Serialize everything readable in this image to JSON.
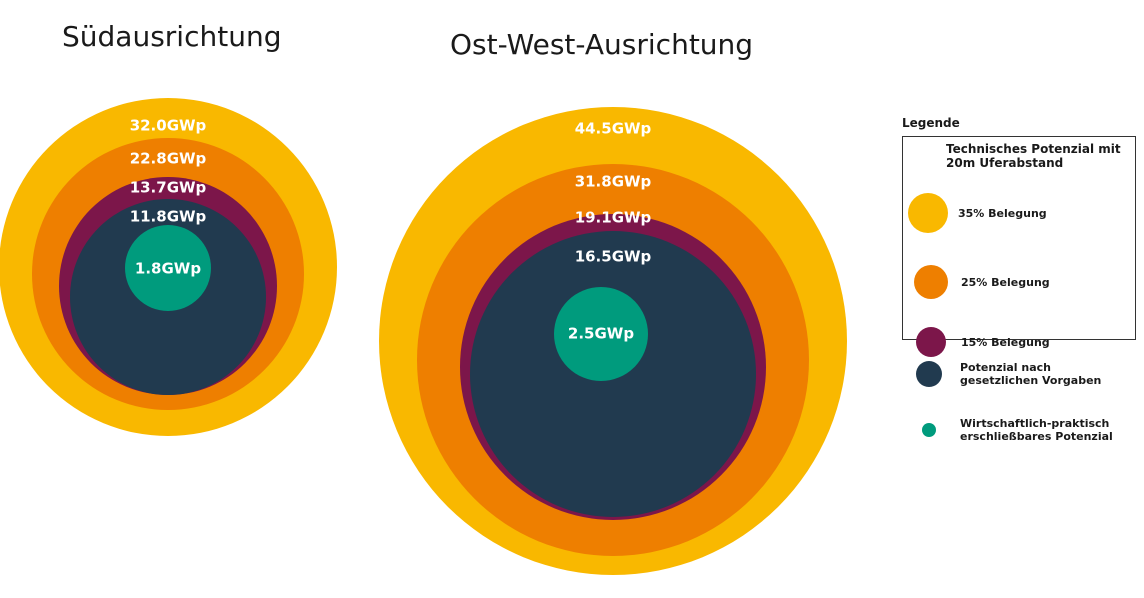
{
  "colors": {
    "occ35": "#f9b800",
    "occ25": "#ee7f00",
    "occ15": "#7c164a",
    "legal": "#213a4f",
    "economic": "#009b7d"
  },
  "chart_data": [
    {
      "type": "nested-circles",
      "title": "Südausrichtung",
      "rings": [
        {
          "key": "occ35",
          "value": 32.0,
          "label": "32.0GWp"
        },
        {
          "key": "occ25",
          "value": 22.8,
          "label": "22.8GWp"
        },
        {
          "key": "occ15",
          "value": 13.7,
          "label": "13.7GWp"
        },
        {
          "key": "legal",
          "value": 11.8,
          "label": "11.8GWp"
        },
        {
          "key": "economic",
          "value": 1.8,
          "label": "1.8GWp"
        }
      ]
    },
    {
      "type": "nested-circles",
      "title": "Ost-West-Ausrichtung",
      "rings": [
        {
          "key": "occ35",
          "value": 44.5,
          "label": "44.5GWp"
        },
        {
          "key": "occ25",
          "value": 31.8,
          "label": "31.8GWp"
        },
        {
          "key": "occ15",
          "value": 19.1,
          "label": "19.1GWp"
        },
        {
          "key": "legal",
          "value": 16.5,
          "label": "16.5GWp"
        },
        {
          "key": "economic",
          "value": 2.5,
          "label": "2.5GWp"
        }
      ]
    }
  ],
  "legend": {
    "title": "Legende",
    "box_title": "Technisches Potenzial mit 20m Uferabstand",
    "items": [
      {
        "key": "occ35",
        "label": "35% Belegung"
      },
      {
        "key": "occ25",
        "label": "25% Belegung"
      },
      {
        "key": "occ15",
        "label": "15% Belegung"
      },
      {
        "key": "legal",
        "label": "Potenzial nach gesetzlichen Vorgaben"
      },
      {
        "key": "economic",
        "label": "Wirtschaftlich-praktisch erschließbares Potenzial"
      }
    ]
  }
}
